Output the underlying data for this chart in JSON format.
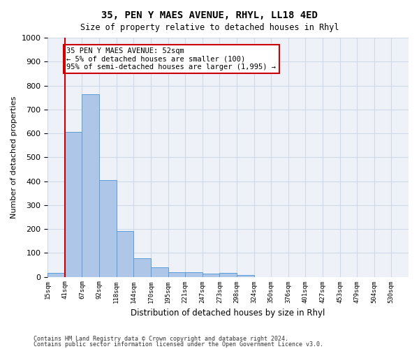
{
  "title": "35, PEN Y MAES AVENUE, RHYL, LL18 4ED",
  "subtitle": "Size of property relative to detached houses in Rhyl",
  "xlabel": "Distribution of detached houses by size in Rhyl",
  "ylabel": "Number of detached properties",
  "bin_labels": [
    "15sqm",
    "41sqm",
    "67sqm",
    "92sqm",
    "118sqm",
    "144sqm",
    "170sqm",
    "195sqm",
    "221sqm",
    "247sqm",
    "273sqm",
    "298sqm",
    "324sqm",
    "350sqm",
    "376sqm",
    "401sqm",
    "427sqm",
    "453sqm",
    "479sqm",
    "504sqm",
    "530sqm"
  ],
  "bar_values": [
    15,
    605,
    765,
    405,
    190,
    77,
    40,
    20,
    18,
    12,
    15,
    7,
    0,
    0,
    0,
    0,
    0,
    0,
    0,
    0,
    0
  ],
  "bar_color": "#aec6e8",
  "bar_edge_color": "#5a9ed6",
  "property_line_x": 1,
  "property_size": "52sqm",
  "annotation_text": "35 PEN Y MAES AVENUE: 52sqm\n← 5% of detached houses are smaller (100)\n95% of semi-detached houses are larger (1,995) →",
  "annotation_box_color": "#ffffff",
  "annotation_border_color": "#cc0000",
  "vline_color": "#cc0000",
  "ylim": [
    0,
    1000
  ],
  "yticks": [
    0,
    100,
    200,
    300,
    400,
    500,
    600,
    700,
    800,
    900,
    1000
  ],
  "grid_color": "#d0d8e8",
  "background_color": "#eef2f8",
  "footer_line1": "Contains HM Land Registry data © Crown copyright and database right 2024.",
  "footer_line2": "Contains public sector information licensed under the Open Government Licence v3.0."
}
